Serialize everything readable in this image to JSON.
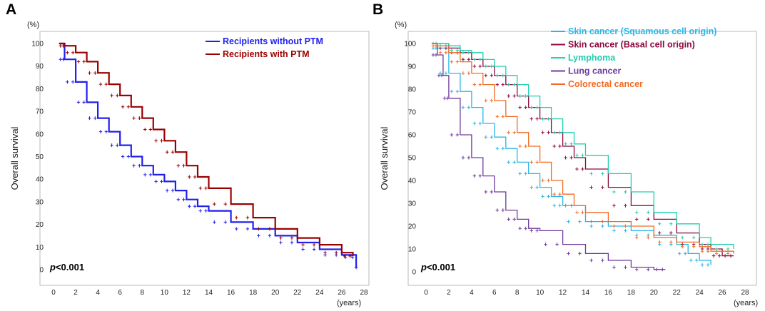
{
  "chart_data": [
    {
      "type": "line",
      "panel_label": "A",
      "y_unit": "(%)",
      "x_unit": "(years)",
      "ylabel": "Overall survival",
      "xlabel": "",
      "xlim": [
        0,
        28
      ],
      "ylim": [
        0,
        100
      ],
      "x_ticks": [
        "0",
        "2",
        "4",
        "6",
        "8",
        "10",
        "12",
        "14",
        "16",
        "18",
        "20",
        "22",
        "24",
        "26",
        "28"
      ],
      "y_ticks": [
        "0",
        "10",
        "20",
        "30",
        "40",
        "50",
        "60",
        "70",
        "80",
        "90",
        "100"
      ],
      "annotation": {
        "bold_italic": "p",
        "rest": "<0.001"
      },
      "legend_position": "top-right",
      "series": [
        {
          "name": "Recipients without PTM",
          "color": "#2020ee",
          "x": [
            0.5,
            1,
            2,
            3,
            4,
            5,
            6,
            7,
            8,
            9,
            10,
            11,
            12,
            13,
            14,
            16,
            18,
            20,
            22,
            24,
            26,
            27.3,
            27.3
          ],
          "y": [
            100,
            93,
            83,
            74,
            67,
            61,
            55,
            50,
            46,
            42,
            39,
            35,
            31,
            28,
            26,
            21,
            18,
            15,
            12,
            9,
            6.5,
            5.5,
            1
          ]
        },
        {
          "name": "Recipients with PTM",
          "color": "#9b0000",
          "x": [
            0.5,
            1,
            2,
            3,
            4,
            5,
            6,
            7,
            8,
            9,
            10,
            11,
            12,
            13,
            14,
            16,
            18,
            20,
            22,
            24,
            26,
            27
          ],
          "y": [
            100,
            99,
            96,
            92,
            87,
            82,
            77,
            72,
            67,
            62,
            57,
            52,
            46,
            41,
            36,
            29,
            23,
            18,
            14,
            11,
            7.5,
            6
          ]
        }
      ]
    },
    {
      "type": "line",
      "panel_label": "B",
      "y_unit": "(%)",
      "x_unit": "(years)",
      "ylabel": "Overall survival",
      "xlabel": "",
      "xlim": [
        0,
        28
      ],
      "ylim": [
        0,
        100
      ],
      "x_ticks": [
        "0",
        "2",
        "4",
        "6",
        "8",
        "10",
        "12",
        "14",
        "16",
        "18",
        "20",
        "22",
        "24",
        "26",
        "28"
      ],
      "y_ticks": [
        "0",
        "10",
        "20",
        "30",
        "40",
        "50",
        "60",
        "70",
        "80",
        "90",
        "100"
      ],
      "annotation": {
        "bold_italic": "p",
        "rest": "<0.001"
      },
      "legend_position": "top-right",
      "series": [
        {
          "name": "Skin cancer (Squamous cell origin)",
          "color": "#29b6e8",
          "x": [
            0.5,
            1,
            2,
            3,
            4,
            5,
            6,
            7,
            8,
            9,
            10,
            11,
            12,
            14,
            16,
            18,
            20,
            22,
            23,
            24,
            25
          ],
          "y": [
            100,
            98,
            87,
            79,
            72,
            65,
            59,
            54,
            48,
            43,
            37,
            33,
            29,
            22,
            20,
            18,
            16,
            12,
            8,
            5,
            3
          ]
        },
        {
          "name": "Skin cancer (Basal cell origin)",
          "color": "#8c0a3e",
          "x": [
            0.5,
            1,
            2,
            3,
            4,
            5,
            6,
            7,
            8,
            9,
            10,
            11,
            12,
            13,
            14,
            16,
            18,
            20,
            22,
            24,
            25,
            26,
            27
          ],
          "y": [
            100,
            100,
            98,
            96,
            93,
            90,
            86,
            82,
            77,
            72,
            67,
            61,
            55,
            50,
            45,
            37,
            29,
            23,
            17,
            12,
            10,
            7,
            7
          ]
        },
        {
          "name": "Lymphoma",
          "color": "#1fcfae",
          "x": [
            0.5,
            1,
            2,
            3,
            4,
            5,
            6,
            7,
            8,
            9,
            10,
            11,
            12,
            13,
            14,
            16,
            18,
            20,
            22,
            24,
            25,
            27
          ],
          "y": [
            100,
            100,
            99,
            97,
            96,
            93,
            90,
            86,
            82,
            77,
            72,
            67,
            61,
            56,
            51,
            43,
            35,
            26,
            21,
            15,
            12,
            10
          ]
        },
        {
          "name": "Lung cancer",
          "color": "#6e3a9c",
          "x": [
            0.5,
            1,
            1.5,
            2,
            3,
            4,
            5,
            6,
            7,
            8,
            9,
            10,
            12,
            14,
            16,
            18,
            20,
            21
          ],
          "y": [
            100,
            95,
            86,
            76,
            60,
            50,
            42,
            35,
            27,
            23,
            19,
            18,
            12,
            8,
            5,
            2,
            1,
            1
          ]
        },
        {
          "name": "Colorectal cancer",
          "color": "#f26a21",
          "x": [
            0.5,
            1,
            2,
            3,
            4,
            5,
            6,
            7,
            8,
            9,
            10,
            11,
            12,
            13,
            14,
            16,
            18,
            20,
            22,
            24,
            25,
            27
          ],
          "y": [
            100,
            99,
            96,
            92,
            87,
            82,
            75,
            68,
            61,
            55,
            48,
            40,
            34,
            29,
            26,
            22,
            20,
            15,
            13,
            11,
            9,
            8
          ]
        }
      ]
    }
  ]
}
